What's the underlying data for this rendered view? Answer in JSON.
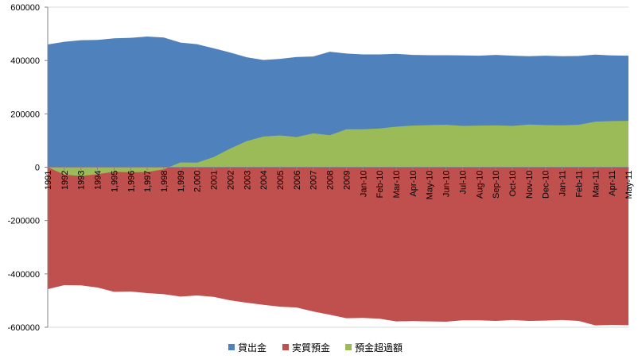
{
  "chart_data": {
    "type": "area",
    "title": "",
    "xlabel": "",
    "ylabel": "",
    "ylim": [
      -600000,
      600000
    ],
    "yticks": [
      600000,
      400000,
      200000,
      0,
      -200000,
      -400000,
      -600000
    ],
    "ytick_labels": [
      "600000",
      "400000",
      "200000",
      "0",
      "-200000",
      "-400000",
      "-600000"
    ],
    "grid": "horizontal",
    "legend_position": "bottom",
    "categories": [
      "1991",
      "1992",
      "1993",
      "1994",
      "1,995",
      "1,996",
      "1,997",
      "1,998",
      "1,999",
      "2,000",
      "2001",
      "2002",
      "2003",
      "2004",
      "2005",
      "2006",
      "2007",
      "2008",
      "2009",
      "Jan-10",
      "Feb-10",
      "Mar-10",
      "Apr-10",
      "May-10",
      "Jun-10",
      "Jul-10",
      "Aug-10",
      "Sep-10",
      "Oct-10",
      "Nov-10",
      "Dec-10",
      "Jan-11",
      "Feb-11",
      "Mar-11",
      "Apr-11",
      "May-11"
    ],
    "series": [
      {
        "name": "貸出金",
        "color": "#4f81bd",
        "values": [
          460000,
          470000,
          476000,
          477000,
          483000,
          485000,
          490000,
          486000,
          467000,
          461000,
          446000,
          430000,
          412000,
          402000,
          406000,
          413000,
          415000,
          433000,
          426000,
          423000,
          423000,
          425000,
          421000,
          420000,
          420000,
          419000,
          418000,
          421000,
          418000,
          416000,
          418000,
          416000,
          417000,
          422000,
          419000,
          418000
        ]
      },
      {
        "name": "実質預金",
        "color": "#c0504d",
        "values": [
          -457000,
          -442000,
          -443000,
          -451000,
          -467000,
          -466000,
          -472000,
          -476000,
          -485000,
          -481000,
          -486000,
          -499000,
          -508000,
          -516000,
          -523000,
          -526000,
          -541000,
          -553000,
          -566000,
          -565000,
          -568000,
          -578000,
          -577000,
          -578000,
          -579000,
          -574000,
          -574000,
          -576000,
          -573000,
          -576000,
          -575000,
          -573000,
          -576000,
          -593000,
          -591000,
          -592000
        ]
      },
      {
        "name": "預金超過額",
        "color": "#9bbb59",
        "values": [
          0,
          -28000,
          -33000,
          -26000,
          -17000,
          -19000,
          -18000,
          -8000,
          18000,
          17000,
          38000,
          70000,
          98000,
          115000,
          119000,
          113000,
          127000,
          120000,
          142000,
          142000,
          145000,
          152000,
          156000,
          158000,
          159000,
          155000,
          156000,
          157000,
          155000,
          160000,
          158000,
          157000,
          159000,
          171000,
          173000,
          174000
        ]
      }
    ]
  }
}
